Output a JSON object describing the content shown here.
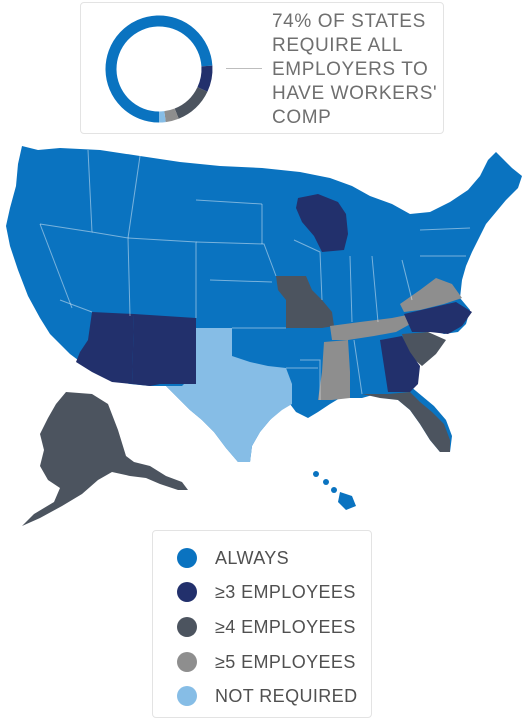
{
  "stat": {
    "text": "74% OF STATES REQUIRE ALL EMPLOYERS TO HAVE WORKERS' COMP",
    "donut": {
      "always_pct": 74,
      "three_pct": 8,
      "four_pct": 12,
      "five_pct": 4,
      "not_required_pct": 2
    }
  },
  "colors": {
    "always": "#0a73c0",
    "three": "#22306c",
    "four": "#4c545f",
    "five": "#8e8e8e",
    "not_required": "#86bde6"
  },
  "legend": {
    "items": [
      {
        "label": "ALWAYS",
        "color": "#0a73c0"
      },
      {
        "label": "≥3 EMPLOYEES",
        "color": "#22306c"
      },
      {
        "label": "≥4 EMPLOYEES",
        "color": "#4c545f"
      },
      {
        "label": "≥5 EMPLOYEES",
        "color": "#8e8e8e"
      },
      {
        "label": "NOT REQUIRED",
        "color": "#86bde6"
      }
    ]
  }
}
